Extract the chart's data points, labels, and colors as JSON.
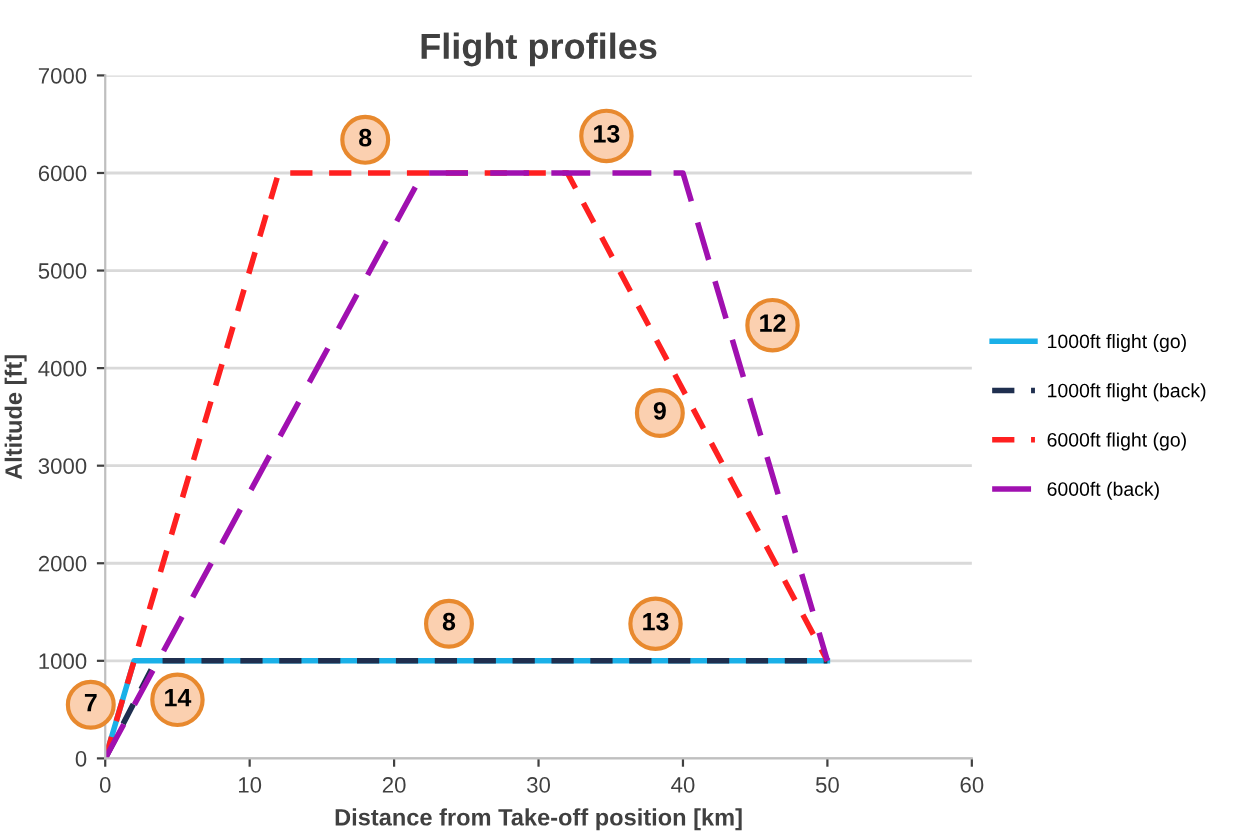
{
  "chart_data": {
    "type": "line",
    "title": "Flight profiles",
    "xlabel": "Distance from Take-off position [km]",
    "ylabel": "Altitude [ft]",
    "xlim": [
      0,
      60
    ],
    "xticks": [
      0,
      10,
      20,
      30,
      40,
      50,
      60
    ],
    "ylim": [
      0,
      7000
    ],
    "yticks": [
      0,
      1000,
      2000,
      3000,
      4000,
      5000,
      6000,
      7000
    ],
    "grid": "y",
    "legend": "right",
    "marker": "none",
    "series": [
      {
        "name": "1000ft flight (go)",
        "color": "#1ab0e8",
        "line_style": "solid",
        "x": [
          0,
          2,
          50
        ],
        "values": [
          0,
          1000,
          1000
        ]
      },
      {
        "name": "1000ft flight (back)",
        "color": "#1f2f4f",
        "line_style": "dashed",
        "x": [
          0,
          3.5,
          50
        ],
        "values": [
          0,
          1000,
          1000
        ]
      },
      {
        "name": "6000ft flight (go)",
        "color": "#ff2020",
        "line_style": "dashed",
        "x": [
          0,
          12,
          32,
          50
        ],
        "values": [
          0,
          6000,
          6000,
          1000
        ]
      },
      {
        "name": "6000ft (back)",
        "color": "#a010b0",
        "line_style": "longdash",
        "x": [
          0,
          22,
          40,
          50
        ],
        "values": [
          0,
          6000,
          6000,
          1000
        ]
      }
    ],
    "annotations": [
      {
        "text": "7",
        "x": -1,
        "y": 550
      },
      {
        "text": "14",
        "x": 5,
        "y": 600
      },
      {
        "text": "8",
        "x": 18,
        "y": 6340
      },
      {
        "text": "13",
        "x": 34.7,
        "y": 6380
      },
      {
        "text": "12",
        "x": 46.2,
        "y": 4440
      },
      {
        "text": "9",
        "x": 38.4,
        "y": 3540
      },
      {
        "text": "8",
        "x": 23.8,
        "y": 1380
      },
      {
        "text": "13",
        "x": 38.1,
        "y": 1380
      }
    ]
  }
}
